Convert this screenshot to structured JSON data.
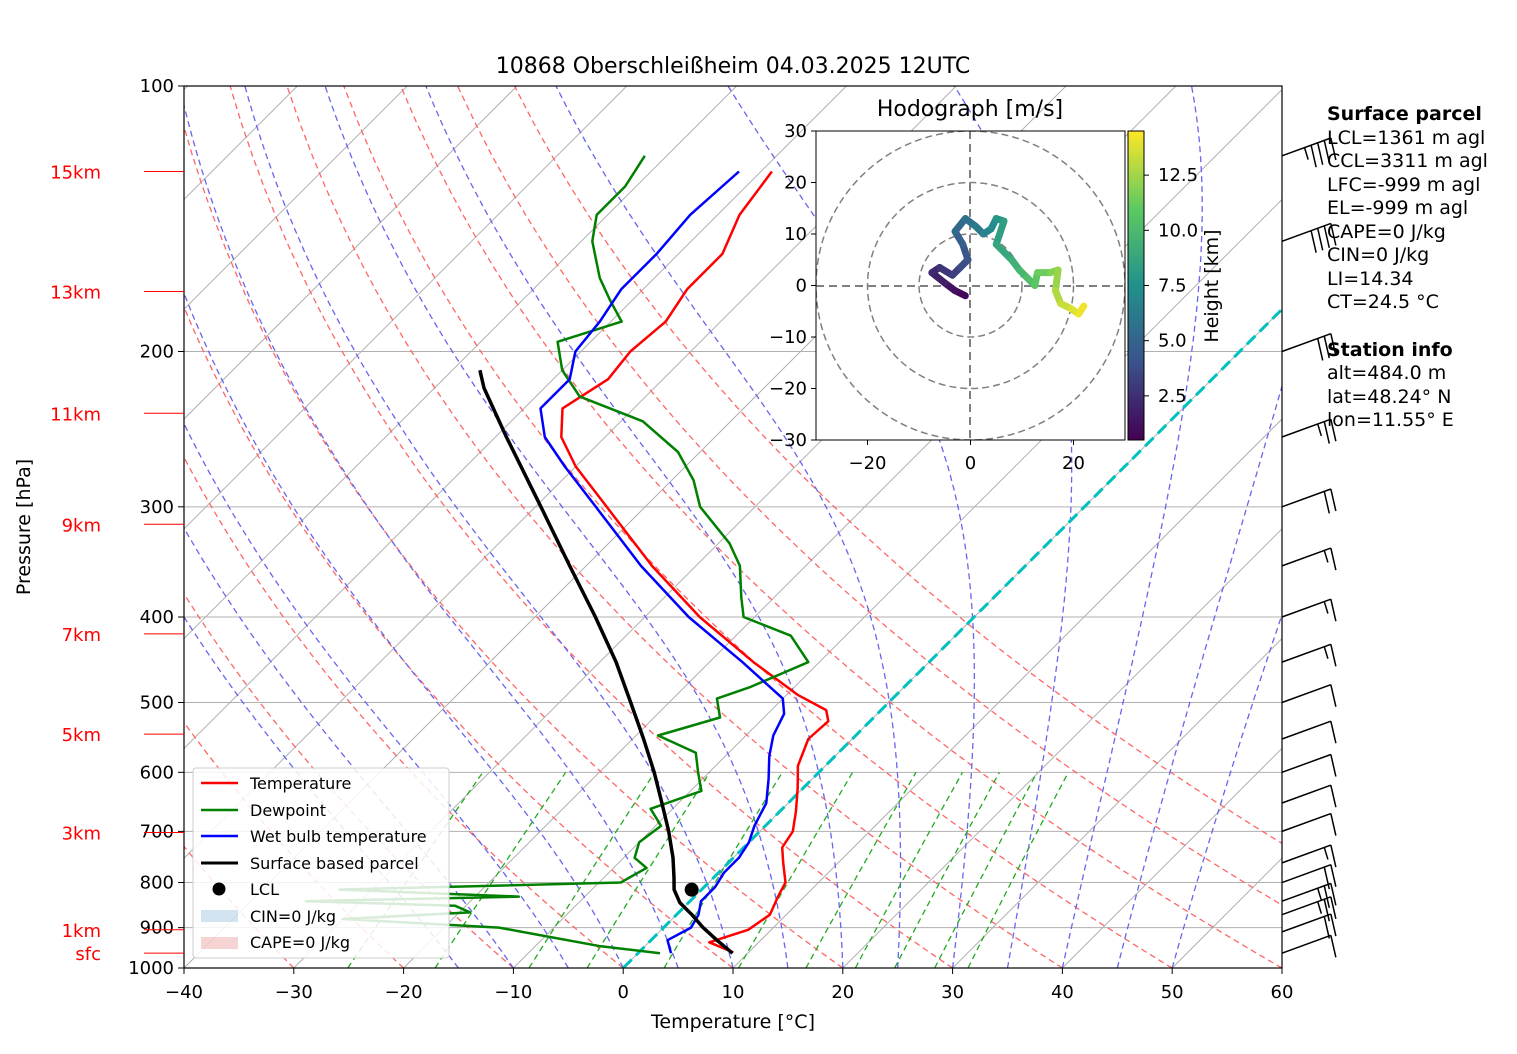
{
  "chart_data": {
    "type": "line",
    "title": "10868 Oberschleißheim 04.03.2025 12UTC",
    "xlabel": "Temperature [°C]",
    "ylabel": "Pressure [hPa]",
    "xlim": [
      -40,
      60
    ],
    "ylim": [
      1000,
      100
    ],
    "y_scale": "log",
    "x_ticks": [
      "−40",
      "−30",
      "−20",
      "−10",
      "0",
      "10",
      "20",
      "30",
      "40",
      "50",
      "60"
    ],
    "y_ticks": [
      "1000",
      "900",
      "800",
      "700",
      "600",
      "500",
      "400",
      "300",
      "200",
      "100"
    ],
    "height_labels": [
      {
        "label": "sfc",
        "p": 962
      },
      {
        "label": "1km",
        "p": 905
      },
      {
        "label": "3km",
        "p": 702
      },
      {
        "label": "5km",
        "p": 543
      },
      {
        "label": "7km",
        "p": 418
      },
      {
        "label": "9km",
        "p": 314
      },
      {
        "label": "11km",
        "p": 235
      },
      {
        "label": "13km",
        "p": 171
      },
      {
        "label": "15km",
        "p": 125
      }
    ],
    "series": [
      {
        "name": "Temperature",
        "color": "#ff0000",
        "points": [
          [
            960,
            8.6
          ],
          [
            935,
            5.5
          ],
          [
            905,
            7.9
          ],
          [
            870,
            8.5
          ],
          [
            830,
            7.6
          ],
          [
            800,
            7.0
          ],
          [
            760,
            5.0
          ],
          [
            730,
            3.5
          ],
          [
            700,
            3.0
          ],
          [
            665,
            1.5
          ],
          [
            625,
            -0.5
          ],
          [
            590,
            -2.5
          ],
          [
            550,
            -4.0
          ],
          [
            525,
            -3.8
          ],
          [
            510,
            -5.0
          ],
          [
            490,
            -9.0
          ],
          [
            450,
            -16.0
          ],
          [
            400,
            -25.0
          ],
          [
            350,
            -34.0
          ],
          [
            300,
            -43.5
          ],
          [
            270,
            -50.0
          ],
          [
            250,
            -54.0
          ],
          [
            232,
            -56.5
          ],
          [
            215,
            -55.0
          ],
          [
            200,
            -55.5
          ],
          [
            185,
            -55.0
          ],
          [
            170,
            -56.0
          ],
          [
            155,
            -56.0
          ],
          [
            140,
            -58.0
          ],
          [
            125,
            -59.0
          ]
        ]
      },
      {
        "name": "Dewpoint",
        "color": "#008000",
        "points": [
          [
            962,
            2.0
          ],
          [
            945,
            -4.0
          ],
          [
            920,
            -10.0
          ],
          [
            900,
            -15.0
          ],
          [
            880,
            -30.0
          ],
          [
            865,
            -19.0
          ],
          [
            850,
            -21.0
          ],
          [
            840,
            -35.0
          ],
          [
            830,
            -16.0
          ],
          [
            815,
            -33.0
          ],
          [
            800,
            -8.0
          ],
          [
            770,
            -7.0
          ],
          [
            750,
            -9.0
          ],
          [
            720,
            -10.0
          ],
          [
            690,
            -9.5
          ],
          [
            660,
            -12.0
          ],
          [
            630,
            -9.0
          ],
          [
            600,
            -11.0
          ],
          [
            570,
            -13.0
          ],
          [
            545,
            -18.0
          ],
          [
            520,
            -14.0
          ],
          [
            495,
            -16.0
          ],
          [
            480,
            -14.0
          ],
          [
            450,
            -11.0
          ],
          [
            420,
            -15.0
          ],
          [
            400,
            -21.0
          ],
          [
            380,
            -23.0
          ],
          [
            350,
            -26.0
          ],
          [
            330,
            -29.0
          ],
          [
            300,
            -35.0
          ],
          [
            280,
            -38.0
          ],
          [
            260,
            -42.0
          ],
          [
            240,
            -48.0
          ],
          [
            225,
            -56.0
          ],
          [
            210,
            -60.0
          ],
          [
            195,
            -63.0
          ],
          [
            185,
            -59.0
          ],
          [
            175,
            -62.0
          ],
          [
            165,
            -65.0
          ],
          [
            150,
            -69.0
          ],
          [
            140,
            -71.0
          ],
          [
            130,
            -71.0
          ],
          [
            120,
            -72.0
          ]
        ]
      },
      {
        "name": "Wet bulb temperature",
        "color": "#0000ff",
        "points": [
          [
            962,
            3.0
          ],
          [
            930,
            1.5
          ],
          [
            900,
            2.5
          ],
          [
            870,
            2.0
          ],
          [
            840,
            1.0
          ],
          [
            810,
            1.0
          ],
          [
            780,
            0.5
          ],
          [
            750,
            0.5
          ],
          [
            720,
            0.0
          ],
          [
            690,
            -1.0
          ],
          [
            650,
            -2.0
          ],
          [
            610,
            -4.0
          ],
          [
            575,
            -6.0
          ],
          [
            545,
            -7.5
          ],
          [
            515,
            -8.5
          ],
          [
            495,
            -10.0
          ],
          [
            450,
            -17.0
          ],
          [
            400,
            -26.0
          ],
          [
            350,
            -35.0
          ],
          [
            300,
            -44.5
          ],
          [
            270,
            -51.0
          ],
          [
            250,
            -55.5
          ],
          [
            232,
            -58.5
          ],
          [
            215,
            -58.5
          ],
          [
            200,
            -60.5
          ],
          [
            185,
            -61.0
          ],
          [
            170,
            -62.0
          ],
          [
            155,
            -62.0
          ],
          [
            140,
            -62.5
          ],
          [
            125,
            -62.0
          ]
        ]
      },
      {
        "name": "Surface based parcel",
        "color": "#000000",
        "points": [
          [
            962,
            8.6
          ],
          [
            930,
            6.0
          ],
          [
            900,
            3.6
          ],
          [
            870,
            1.4
          ],
          [
            843,
            -0.8
          ],
          [
            815,
            -2.5
          ],
          [
            790,
            -3.6
          ],
          [
            750,
            -5.5
          ],
          [
            700,
            -8.3
          ],
          [
            650,
            -11.5
          ],
          [
            600,
            -15.0
          ],
          [
            550,
            -19.0
          ],
          [
            500,
            -23.5
          ],
          [
            450,
            -28.5
          ],
          [
            400,
            -34.5
          ],
          [
            350,
            -41.5
          ],
          [
            300,
            -49.5
          ],
          [
            250,
            -59.0
          ],
          [
            220,
            -65.5
          ],
          [
            210,
            -67.5
          ]
        ]
      }
    ],
    "lcl": {
      "p": 815,
      "t": -0.9
    },
    "legend": {
      "placement": "lower-left",
      "entries": [
        "Temperature",
        "Dewpoint",
        "Wet bulb temperature",
        "Surface based parcel",
        "LCL",
        "CIN=0 J/kg",
        "CAPE=0 J/kg"
      ]
    },
    "wind_barbs": [
      {
        "p": 962,
        "speed_kt": 10
      },
      {
        "p": 910,
        "speed_kt": 20
      },
      {
        "p": 870,
        "speed_kt": 25
      },
      {
        "p": 840,
        "speed_kt": 25
      },
      {
        "p": 800,
        "speed_kt": 20
      },
      {
        "p": 760,
        "speed_kt": 15
      },
      {
        "p": 700,
        "speed_kt": 10
      },
      {
        "p": 650,
        "speed_kt": 10
      },
      {
        "p": 600,
        "speed_kt": 10
      },
      {
        "p": 550,
        "speed_kt": 10
      },
      {
        "p": 500,
        "speed_kt": 10
      },
      {
        "p": 450,
        "speed_kt": 15
      },
      {
        "p": 400,
        "speed_kt": 15
      },
      {
        "p": 350,
        "speed_kt": 15
      },
      {
        "p": 300,
        "speed_kt": 20
      },
      {
        "p": 250,
        "speed_kt": 25
      },
      {
        "p": 200,
        "speed_kt": 30
      },
      {
        "p": 150,
        "speed_kt": 40
      },
      {
        "p": 120,
        "speed_kt": 45
      }
    ],
    "hodograph": {
      "title": "Hodograph [m/s]",
      "xlim": [
        -30,
        30
      ],
      "ylim": [
        -30,
        30
      ],
      "ticks": [
        "−30",
        "−20",
        "−10",
        "0",
        "10",
        "20",
        "30"
      ],
      "x_ticks": [
        "−20",
        "0",
        "20"
      ],
      "rings": [
        10,
        20,
        30
      ],
      "colorbar_label": "Height [km]",
      "colorbar_ticks": [
        "2.5",
        "5.0",
        "7.5",
        "10.0",
        "12.5"
      ],
      "colorbar_range": [
        0.5,
        14.5
      ],
      "points": [
        [
          -1.0,
          -2.0,
          0.5
        ],
        [
          -3.0,
          -1.0,
          0.8
        ],
        [
          -5.0,
          0.5,
          1.2
        ],
        [
          -7.5,
          2.5,
          1.8
        ],
        [
          -6.0,
          3.5,
          2.2
        ],
        [
          -3.5,
          2.0,
          2.7
        ],
        [
          -2.0,
          3.5,
          3.2
        ],
        [
          -0.5,
          5.0,
          3.7
        ],
        [
          -1.5,
          8.0,
          4.2
        ],
        [
          -3.0,
          10.5,
          4.7
        ],
        [
          -1.0,
          13.0,
          5.2
        ],
        [
          1.0,
          11.5,
          5.7
        ],
        [
          2.5,
          10.0,
          6.2
        ],
        [
          4.0,
          11.0,
          6.7
        ],
        [
          5.0,
          13.0,
          7.2
        ],
        [
          6.5,
          12.5,
          7.8
        ],
        [
          5.0,
          8.0,
          8.3
        ],
        [
          8.0,
          5.0,
          8.8
        ],
        [
          9.5,
          3.0,
          9.3
        ],
        [
          11.0,
          1.5,
          9.8
        ],
        [
          12.5,
          0.0,
          10.3
        ],
        [
          13.0,
          2.5,
          10.8
        ],
        [
          15.5,
          2.5,
          11.3
        ],
        [
          17.0,
          3.0,
          11.8
        ],
        [
          16.5,
          -1.0,
          12.3
        ],
        [
          17.5,
          -3.5,
          12.8
        ],
        [
          19.5,
          -4.5,
          13.3
        ],
        [
          21.0,
          -5.5,
          13.8
        ],
        [
          22.0,
          -4.0,
          14.2
        ]
      ]
    }
  },
  "info_panel": {
    "surface_header": "Surface parcel",
    "surface_lines": [
      "LCL=1361 m agl",
      "CCL=3311 m agl",
      "LFC=-999 m agl",
      "EL=-999 m agl",
      "CAPE=0 J/kg",
      "CIN=0 J/kg",
      "LI=14.34",
      "CT=24.5 °C"
    ],
    "station_header": "Station info",
    "station_lines": [
      "alt=484.0 m",
      "lat=48.24° N",
      "lon=11.55° E"
    ]
  },
  "colors": {
    "temperature": "#ff0000",
    "dewpoint": "#008000",
    "wetbulb": "#0000ff",
    "parcel": "#000000",
    "dry_adiabat": "#ff6666",
    "moist_adiabat": "#6666ee",
    "mixing_ratio": "#22aa22",
    "freezing_isotherm": "#00c0c0"
  }
}
